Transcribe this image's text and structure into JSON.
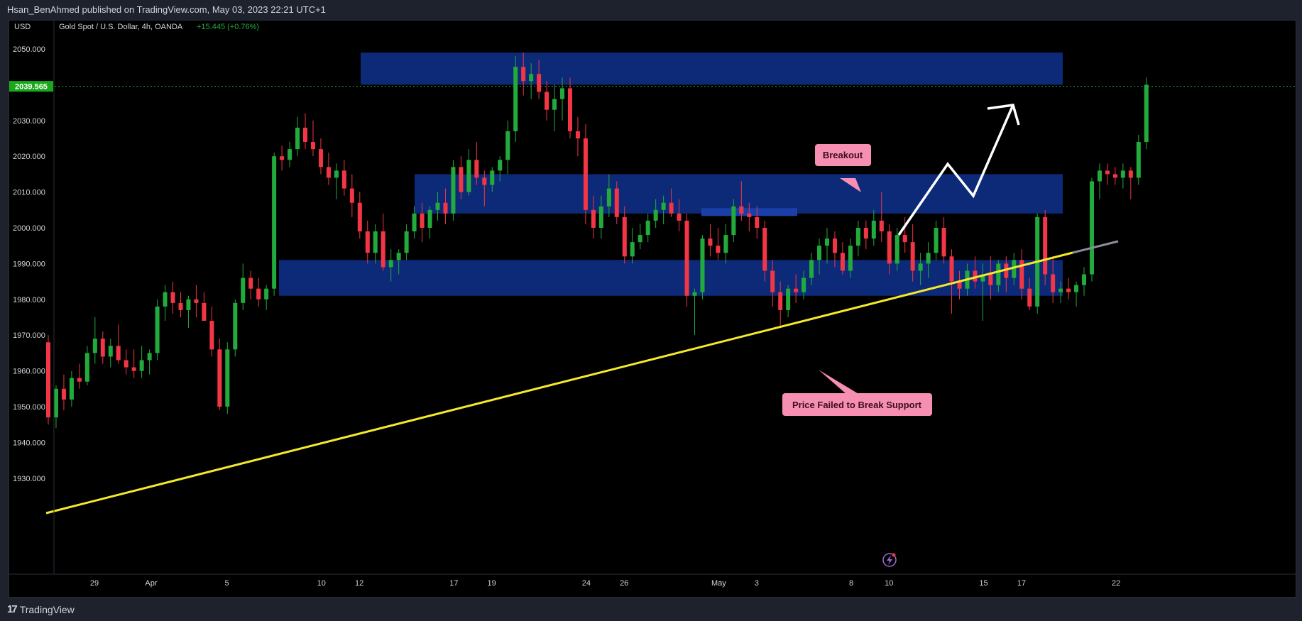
{
  "header": {
    "publish_line": "Hsan_BenAhmed published on TradingView.com, May 03, 2023 22:21 UTC+1"
  },
  "footer": {
    "brand": "TradingView"
  },
  "chart_data": {
    "type": "candlestick",
    "currency": "USD",
    "symbol_line": "Gold Spot / U.S. Dollar, 4h, OANDA",
    "change_text": "+15.445 (+0.76%)",
    "last_price": "2039.565",
    "ylim": [
      1925,
      2055
    ],
    "y_ticks": [
      "2050.000",
      "2040.000",
      "2030.000",
      "2020.000",
      "2010.000",
      "2000.000",
      "1990.000",
      "1980.000",
      "1970.000",
      "1960.000",
      "1950.000",
      "1940.000",
      "1930.000"
    ],
    "y_tick_values": [
      2050,
      2040,
      2030,
      2020,
      2010,
      2000,
      1990,
      1980,
      1970,
      1960,
      1950,
      1940,
      1930
    ],
    "x_ticks": [
      {
        "label": "29",
        "day": 0
      },
      {
        "label": "Apr",
        "day": 3
      },
      {
        "label": "5",
        "day": 7
      },
      {
        "label": "10",
        "day": 12
      },
      {
        "label": "12",
        "day": 14
      },
      {
        "label": "17",
        "day": 19
      },
      {
        "label": "19",
        "day": 21
      },
      {
        "label": "24",
        "day": 26
      },
      {
        "label": "26",
        "day": 28
      },
      {
        "label": "May",
        "day": 33
      },
      {
        "label": "3",
        "day": 35
      },
      {
        "label": "8",
        "day": 40
      },
      {
        "label": "10",
        "day": 42
      },
      {
        "label": "15",
        "day": 47
      },
      {
        "label": "17",
        "day": 49
      },
      {
        "label": "22",
        "day": 54
      }
    ],
    "candles": [
      [
        1968,
        1970,
        1945,
        1947
      ],
      [
        1947,
        1956,
        1944,
        1955
      ],
      [
        1955,
        1959,
        1949,
        1952
      ],
      [
        1952,
        1960,
        1950,
        1958
      ],
      [
        1958,
        1962,
        1955,
        1957
      ],
      [
        1957,
        1967,
        1956,
        1965
      ],
      [
        1965,
        1975,
        1962,
        1969
      ],
      [
        1969,
        1971,
        1962,
        1964
      ],
      [
        1964,
        1969,
        1961,
        1967
      ],
      [
        1967,
        1973,
        1962,
        1963
      ],
      [
        1963,
        1966,
        1959,
        1961
      ],
      [
        1961,
        1966,
        1958,
        1960
      ],
      [
        1960,
        1967,
        1958,
        1963
      ],
      [
        1963,
        1966,
        1959,
        1965
      ],
      [
        1965,
        1980,
        1963,
        1978
      ],
      [
        1978,
        1984,
        1974,
        1982
      ],
      [
        1982,
        1985,
        1976,
        1979
      ],
      [
        1979,
        1982,
        1975,
        1977
      ],
      [
        1977,
        1981,
        1972,
        1980
      ],
      [
        1980,
        1984,
        1975,
        1979
      ],
      [
        1979,
        1982,
        1974,
        1974
      ],
      [
        1974,
        1978,
        1964,
        1966
      ],
      [
        1966,
        1969,
        1949,
        1950
      ],
      [
        1950,
        1968,
        1948,
        1966
      ],
      [
        1966,
        1980,
        1964,
        1979
      ],
      [
        1979,
        1990,
        1977,
        1986
      ],
      [
        1986,
        1988,
        1980,
        1983
      ],
      [
        1983,
        1986,
        1978,
        1980
      ],
      [
        1980,
        1984,
        1977,
        1983
      ],
      [
        1983,
        2021,
        1981,
        2020
      ],
      [
        2020,
        2023,
        2016,
        2019
      ],
      [
        2019,
        2024,
        2017,
        2022
      ],
      [
        2022,
        2031,
        2020,
        2028
      ],
      [
        2028,
        2032,
        2022,
        2024
      ],
      [
        2024,
        2030,
        2020,
        2022
      ],
      [
        2022,
        2025,
        2015,
        2017
      ],
      [
        2017,
        2021,
        2012,
        2014
      ],
      [
        2014,
        2018,
        2008,
        2016
      ],
      [
        2016,
        2019,
        2009,
        2011
      ],
      [
        2011,
        2015,
        2003,
        2007
      ],
      [
        2007,
        2010,
        1997,
        1999
      ],
      [
        1999,
        2002,
        1990,
        1993
      ],
      [
        1993,
        2001,
        1990,
        1999
      ],
      [
        1999,
        2004,
        1988,
        1989
      ],
      [
        1989,
        1994,
        1985,
        1991
      ],
      [
        1991,
        1994,
        1987,
        1993
      ],
      [
        1993,
        2001,
        1991,
        1999
      ],
      [
        1999,
        2006,
        1997,
        2004
      ],
      [
        2004,
        2007,
        1996,
        2000
      ],
      [
        2000,
        2006,
        1997,
        2005
      ],
      [
        2005,
        2010,
        2002,
        2007
      ],
      [
        2007,
        2011,
        2001,
        2004
      ],
      [
        2004,
        2019,
        2002,
        2017
      ],
      [
        2017,
        2020,
        2008,
        2010
      ],
      [
        2010,
        2022,
        2009,
        2019
      ],
      [
        2019,
        2024,
        2012,
        2014
      ],
      [
        2014,
        2016,
        2006,
        2012
      ],
      [
        2012,
        2017,
        2010,
        2016
      ],
      [
        2016,
        2020,
        2013,
        2019
      ],
      [
        2019,
        2030,
        2015,
        2027
      ],
      [
        2027,
        2048,
        2024,
        2045
      ],
      [
        2045,
        2049,
        2037,
        2041
      ],
      [
        2041,
        2046,
        2036,
        2043
      ],
      [
        2043,
        2047,
        2036,
        2038
      ],
      [
        2038,
        2041,
        2030,
        2033
      ],
      [
        2033,
        2040,
        2027,
        2036
      ],
      [
        2036,
        2042,
        2030,
        2039
      ],
      [
        2039,
        2042,
        2025,
        2027
      ],
      [
        2027,
        2031,
        2020,
        2025
      ],
      [
        2025,
        2029,
        2001,
        2005
      ],
      [
        2005,
        2009,
        1997,
        2000
      ],
      [
        2000,
        2009,
        1997,
        2006
      ],
      [
        2006,
        2015,
        2003,
        2011
      ],
      [
        2011,
        2013,
        2001,
        2003
      ],
      [
        2003,
        2006,
        1990,
        1992
      ],
      [
        1992,
        2000,
        1990,
        1996
      ],
      [
        1996,
        2001,
        1994,
        1998
      ],
      [
        1998,
        2004,
        1996,
        2002
      ],
      [
        2002,
        2008,
        2000,
        2005
      ],
      [
        2005,
        2009,
        2001,
        2007
      ],
      [
        2007,
        2011,
        2003,
        2004
      ],
      [
        2004,
        2008,
        1999,
        2002
      ],
      [
        2002,
        2004,
        1978,
        1981
      ],
      [
        1981,
        1983,
        1970,
        1982
      ],
      [
        1982,
        1998,
        1980,
        1997
      ],
      [
        1997,
        2001,
        1992,
        1995
      ],
      [
        1995,
        2000,
        1991,
        1993
      ],
      [
        1993,
        2001,
        1990,
        1998
      ],
      [
        1998,
        2008,
        1996,
        2006
      ],
      [
        2006,
        2013,
        2002,
        2004
      ],
      [
        2004,
        2007,
        1999,
        2003
      ],
      [
        2003,
        2006,
        1997,
        2000
      ],
      [
        2000,
        2002,
        1985,
        1988
      ],
      [
        1988,
        1991,
        1978,
        1982
      ],
      [
        1982,
        1985,
        1972,
        1977
      ],
      [
        1977,
        1984,
        1975,
        1983
      ],
      [
        1983,
        1987,
        1979,
        1982
      ],
      [
        1982,
        1988,
        1980,
        1986
      ],
      [
        1986,
        1993,
        1984,
        1991
      ],
      [
        1991,
        1997,
        1987,
        1995
      ],
      [
        1995,
        2000,
        1990,
        1997
      ],
      [
        1997,
        1999,
        1989,
        1993
      ],
      [
        1993,
        1996,
        1987,
        1988
      ],
      [
        1988,
        1997,
        1986,
        1995
      ],
      [
        1995,
        2002,
        1992,
        2000
      ],
      [
        2000,
        2002,
        1994,
        1997
      ],
      [
        1997,
        2005,
        1995,
        2002
      ],
      [
        2002,
        2010,
        1996,
        1999
      ],
      [
        1999,
        2001,
        1987,
        1990
      ],
      [
        1990,
        2000,
        1988,
        1998
      ],
      [
        1998,
        2003,
        1993,
        1996
      ],
      [
        1996,
        2001,
        1985,
        1988
      ],
      [
        1988,
        1993,
        1984,
        1990
      ],
      [
        1990,
        1996,
        1986,
        1993
      ],
      [
        1993,
        2002,
        1991,
        2000
      ],
      [
        2000,
        2003,
        1990,
        1992
      ],
      [
        1992,
        1994,
        1976,
        1985
      ],
      [
        1985,
        1988,
        1980,
        1983
      ],
      [
        1983,
        1990,
        1981,
        1988
      ],
      [
        1988,
        1992,
        1983,
        1985
      ],
      [
        1985,
        1990,
        1974,
        1987
      ],
      [
        1987,
        1992,
        1980,
        1984
      ],
      [
        1984,
        1991,
        1982,
        1990
      ],
      [
        1990,
        1992,
        1982,
        1986
      ],
      [
        1986,
        1993,
        1984,
        1991
      ],
      [
        1991,
        1994,
        1980,
        1983
      ],
      [
        1983,
        1986,
        1977,
        1978
      ],
      [
        1978,
        2004,
        1976,
        2003
      ],
      [
        2003,
        2005,
        1984,
        1987
      ],
      [
        1987,
        1992,
        1979,
        1982
      ],
      [
        1982,
        1985,
        1979,
        1983
      ],
      [
        1983,
        1986,
        1980,
        1982
      ],
      [
        1982,
        1985,
        1978,
        1984
      ],
      [
        1984,
        1989,
        1981,
        1987
      ],
      [
        1987,
        2014,
        1985,
        2013
      ],
      [
        2013,
        2018,
        2008,
        2016
      ],
      [
        2016,
        2018,
        2012,
        2015
      ],
      [
        2015,
        2017,
        2012,
        2014
      ],
      [
        2014,
        2018,
        2011,
        2016
      ],
      [
        2016,
        2017,
        2008,
        2014
      ],
      [
        2014,
        2026,
        2012,
        2024
      ],
      [
        2024,
        2042,
        2022,
        2040
      ]
    ],
    "zones": [
      {
        "from": 2040,
        "to": 2049
      },
      {
        "from": 2004,
        "to": 2015
      },
      {
        "from": 1981,
        "to": 1991
      }
    ],
    "annotations": {
      "breakout": "Breakout",
      "support": "Price Failed to Break Support"
    },
    "colors": {
      "up": "#22ab3c",
      "down": "#f23645",
      "zone": "#0d2a78",
      "trendline": "#f5e92c",
      "label_bg": "#f78fb3",
      "label_text": "#3a0d1f",
      "price_badge": "#18a81a"
    }
  }
}
